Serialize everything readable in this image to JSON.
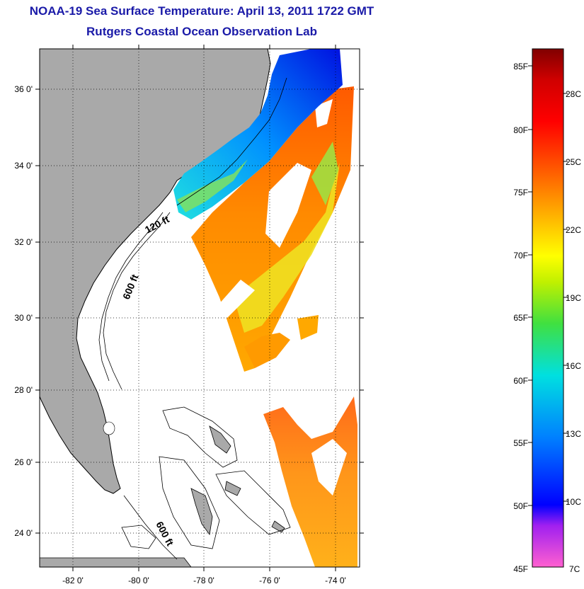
{
  "title": "NOAA-19 Sea Surface Temperature:  April 13, 2011 1722 GMT",
  "subtitle": "Rutgers Coastal Ocean Observation Lab",
  "map": {
    "lat_labels": [
      "36 0'",
      "34 0'",
      "32 0'",
      "30 0'",
      "28 0'",
      "26 0'",
      "24 0'"
    ],
    "lon_labels": [
      "-82 0'",
      "-80 0'",
      "-78 0'",
      "-76 0'",
      "-74 0'"
    ],
    "isobath_labels": [
      "120 ft",
      "600 ft",
      "600 ft"
    ],
    "colors": {
      "land": "#a9a9a9",
      "ocean_nodata": "#ffffff",
      "coast": "#000000"
    }
  },
  "colorbar": {
    "fahrenheit_labels": [
      "85F",
      "80F",
      "75F",
      "70F",
      "65F",
      "60F",
      "55F",
      "50F",
      "45F"
    ],
    "celsius_labels": [
      "28C",
      "25C",
      "22C",
      "19C",
      "16C",
      "13C",
      "10C",
      "7C"
    ],
    "palette": [
      "#ff60d0",
      "#a020f0",
      "#0000ff",
      "#0080ff",
      "#00e0e0",
      "#40e040",
      "#c0f000",
      "#ffff00",
      "#ffb000",
      "#ff6000",
      "#ff0000",
      "#d00000",
      "#800000"
    ]
  }
}
